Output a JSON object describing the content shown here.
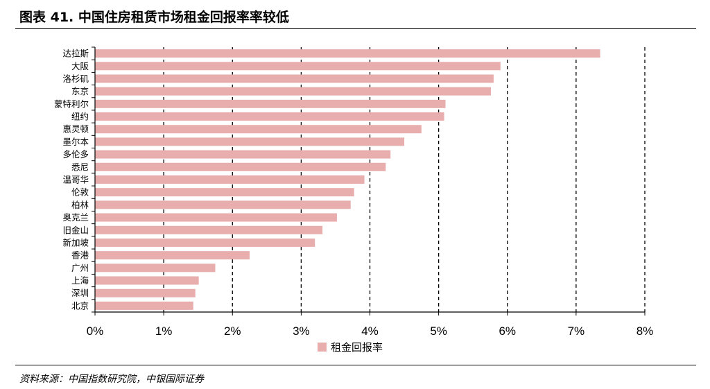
{
  "title": "图表 41. 中国住房租赁市场租金回报率率较低",
  "source": "资料来源：中国指数研究院，中银国际证券",
  "colors": {
    "bar": "#e8aeae",
    "grid": "#000000"
  },
  "chart_data": {
    "type": "bar",
    "orientation": "horizontal",
    "categories": [
      "达拉斯",
      "大阪",
      "洛杉矶",
      "东京",
      "蒙特利尔",
      "纽约",
      "惠灵顿",
      "墨尔本",
      "多伦多",
      "悉尼",
      "温哥华",
      "伦敦",
      "柏林",
      "奥克兰",
      "旧金山",
      "新加坡",
      "香港",
      "广州",
      "上海",
      "深圳",
      "北京"
    ],
    "series": [
      {
        "name": "租金回报率",
        "values": [
          7.35,
          5.9,
          5.8,
          5.76,
          5.1,
          5.08,
          4.75,
          4.5,
          4.3,
          4.23,
          3.92,
          3.77,
          3.72,
          3.52,
          3.31,
          3.2,
          2.25,
          1.75,
          1.51,
          1.46,
          1.43
        ]
      }
    ],
    "xlim": [
      0,
      8
    ],
    "xticks": [
      "0%",
      "1%",
      "2%",
      "3%",
      "4%",
      "5%",
      "6%",
      "7%",
      "8%"
    ],
    "grid": "vertical dashed",
    "legend": "bottom-center"
  }
}
